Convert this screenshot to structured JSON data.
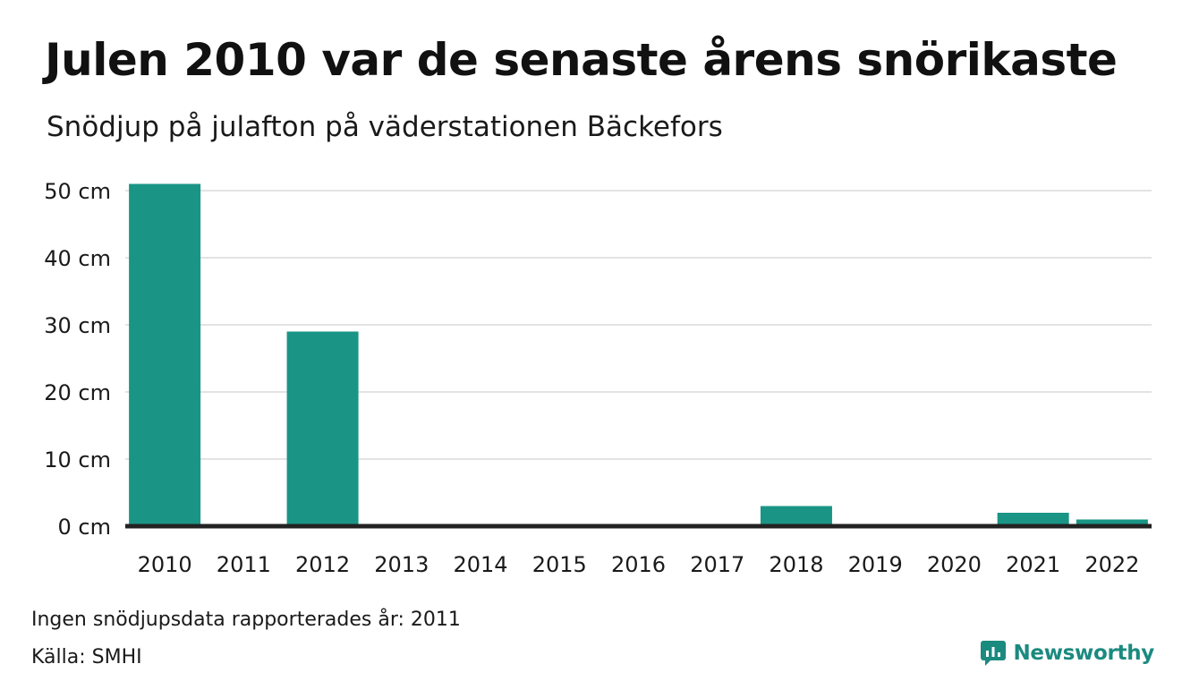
{
  "title": "Julen 2010 var de senaste årens snörikaste",
  "subtitle": "Snödjup på julafton på väderstationen Bäckefors",
  "note": "Ingen snödjupsdata rapporterades år: 2011",
  "source": "Källa: SMHI",
  "brand": {
    "name": "Newsworthy",
    "icon": "bar-chart-speech-bubble-icon"
  },
  "colors": {
    "bar": "#1a9585",
    "gridline": "#e3e3e3",
    "baseline": "#222222",
    "brand": "#1b8a7f"
  },
  "chart_data": {
    "type": "bar",
    "categories": [
      "2010",
      "2011",
      "2012",
      "2013",
      "2014",
      "2015",
      "2016",
      "2017",
      "2018",
      "2019",
      "2020",
      "2021",
      "2022"
    ],
    "values": [
      51,
      null,
      29,
      0,
      0,
      0,
      0,
      0,
      3,
      0,
      0,
      2,
      1
    ],
    "y_ticks": [
      0,
      10,
      20,
      30,
      40,
      50
    ],
    "y_tick_labels": [
      "0 cm",
      "10 cm",
      "20 cm",
      "30 cm",
      "40 cm",
      "50 cm"
    ],
    "ylim": [
      0,
      51
    ],
    "grid": true,
    "xlabel": "",
    "ylabel": ""
  }
}
